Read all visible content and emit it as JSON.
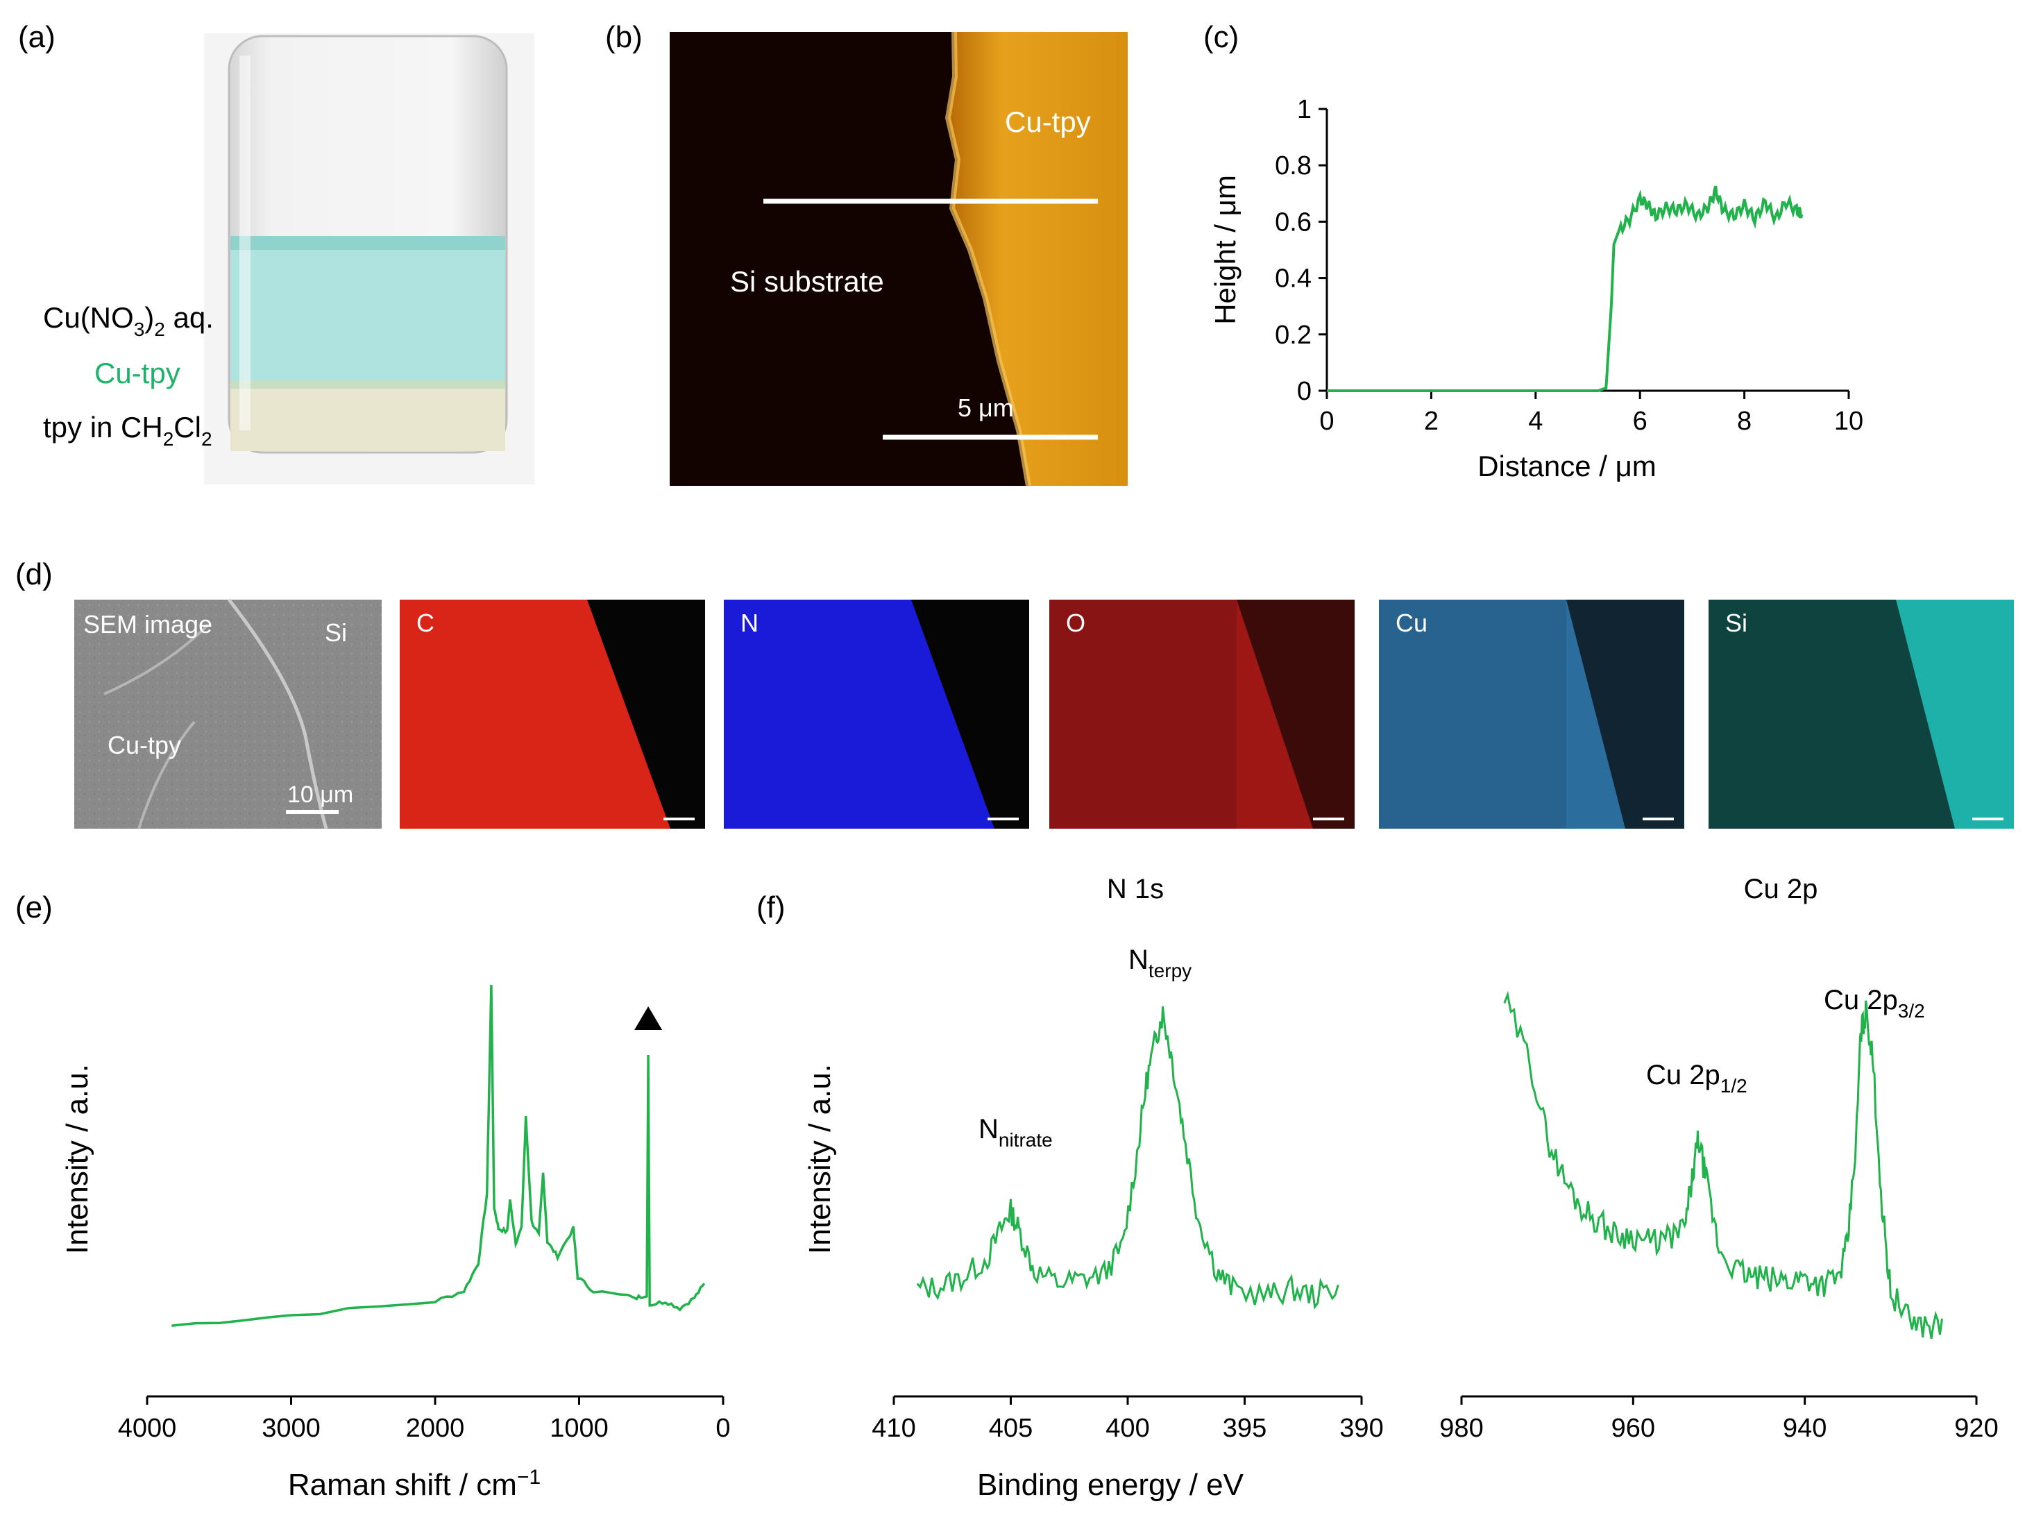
{
  "panel_labels": {
    "a": "(a)",
    "b": "(b)",
    "c": "(c)",
    "d": "(d)",
    "e": "(e)",
    "f": "(f)"
  },
  "colors": {
    "line": "#21b24b",
    "cutpy_text": "#1fb36a",
    "solution": "#aee3e0",
    "afm_dark": "#120300",
    "afm_film": "#d4900f"
  },
  "panel_a": {
    "label_solution": {
      "main": "Cu(NO",
      "sub": "3",
      "post": ")",
      "sub2": "2",
      "tail": " aq."
    },
    "label_cutpy": "Cu-tpy",
    "label_tpy": {
      "main": "tpy in CH",
      "sub": "2",
      "mid": "Cl",
      "sub2": "2"
    }
  },
  "panel_b": {
    "label_film": "Cu-tpy",
    "label_substrate": "Si substrate",
    "scale_text": "5 μm"
  },
  "panel_d": {
    "sem": {
      "title": "SEM image",
      "label_si": "Si",
      "label_film": "Cu-tpy",
      "scale_text": "10 μm"
    },
    "maps": [
      {
        "element": "C",
        "color": "#ff2a1c"
      },
      {
        "element": "N",
        "color": "#1e1eff"
      },
      {
        "element": "O",
        "color": "#e0201c"
      },
      {
        "element": "Cu",
        "color": "#3b96d8"
      },
      {
        "element": "Si",
        "color": "#20b7b0"
      }
    ]
  },
  "chart_data": [
    {
      "id": "c",
      "type": "line",
      "title": "",
      "xlabel": "Distance / μm",
      "ylabel": "Height / μm",
      "xlim": [
        0,
        10
      ],
      "ylim": [
        0,
        1
      ],
      "xticks": [
        "0",
        "2",
        "4",
        "6",
        "8",
        "10"
      ],
      "yticks": [
        "0",
        "0.2",
        "0.4",
        "0.6",
        "0.8",
        "1"
      ],
      "series": [
        {
          "name": "height profile",
          "x": [
            0,
            5.2,
            5.35,
            5.45,
            5.5,
            5.6,
            5.8,
            6.0,
            6.15,
            6.3,
            6.5,
            6.7,
            6.9,
            7.1,
            7.3,
            7.45,
            7.6,
            7.8,
            8.0,
            8.2,
            8.4,
            8.6,
            8.8,
            9.0,
            9.1
          ],
          "y": [
            0,
            0,
            0.01,
            0.3,
            0.52,
            0.57,
            0.61,
            0.68,
            0.66,
            0.62,
            0.65,
            0.64,
            0.66,
            0.62,
            0.65,
            0.71,
            0.64,
            0.62,
            0.66,
            0.61,
            0.67,
            0.61,
            0.67,
            0.64,
            0.63
          ]
        }
      ]
    },
    {
      "id": "e",
      "type": "line",
      "title": "",
      "xlabel": "Raman shift / cm",
      "xlabel_sup": "−1",
      "ylabel": "Intensity / a.u.",
      "xlim": [
        4000,
        0
      ],
      "xticks": [
        "4000",
        "3000",
        "2000",
        "1000",
        "0"
      ],
      "annotation": "▲ at 520 cm⁻¹",
      "series": [
        {
          "name": "Raman",
          "x": [
            3830,
            3000,
            2000,
            1800,
            1700,
            1640,
            1610,
            1590,
            1560,
            1500,
            1480,
            1440,
            1400,
            1370,
            1330,
            1280,
            1250,
            1220,
            1150,
            1040,
            1010,
            900,
            600,
            530,
            520,
            510,
            400,
            300,
            200,
            130
          ],
          "y": [
            0.02,
            0.05,
            0.09,
            0.12,
            0.2,
            0.4,
            1.0,
            0.36,
            0.3,
            0.29,
            0.38,
            0.26,
            0.3,
            0.62,
            0.32,
            0.28,
            0.46,
            0.26,
            0.22,
            0.3,
            0.16,
            0.12,
            0.1,
            0.11,
            0.8,
            0.08,
            0.09,
            0.07,
            0.1,
            0.14
          ]
        }
      ]
    },
    {
      "id": "f-N1s",
      "type": "line",
      "title": "N 1s",
      "xlabel": "Binding energy / eV",
      "ylabel": "Intensity / a.u.",
      "xlim": [
        410,
        390
      ],
      "xticks": [
        "410",
        "405",
        "400",
        "395",
        "390"
      ],
      "annotations": [
        {
          "text": "N",
          "sub": "nitrate",
          "x": 405
        },
        {
          "text": "N",
          "sub": "terpy",
          "x": 398.7
        }
      ],
      "series": [
        {
          "name": "N 1s",
          "x": [
            409,
            408,
            407,
            406,
            405.3,
            405,
            404.6,
            404,
            403,
            402,
            401,
            400.2,
            399.6,
            399.2,
            398.8,
            398.5,
            398.1,
            397.6,
            397,
            396.2,
            395.5,
            394,
            393,
            392,
            391
          ],
          "y": [
            0.12,
            0.13,
            0.16,
            0.22,
            0.33,
            0.37,
            0.3,
            0.18,
            0.14,
            0.15,
            0.17,
            0.26,
            0.55,
            0.78,
            0.92,
            1.0,
            0.85,
            0.62,
            0.35,
            0.18,
            0.12,
            0.1,
            0.12,
            0.1,
            0.13
          ]
        }
      ]
    },
    {
      "id": "f-Cu2p",
      "type": "line",
      "title": "Cu 2p",
      "xlabel": "Binding energy / eV",
      "ylabel": "",
      "xlim": [
        980,
        920
      ],
      "xticks": [
        "980",
        "960",
        "940",
        "920"
      ],
      "annotations": [
        {
          "text": "Cu 2p",
          "sub": "1/2",
          "x": 952.6
        },
        {
          "text": "Cu 2p",
          "sub": "3/2",
          "x": 932.8
        }
      ],
      "series": [
        {
          "name": "Cu 2p",
          "x": [
            975,
            972,
            970,
            968,
            966,
            964,
            962,
            960,
            958,
            956,
            954,
            953,
            952.4,
            951.5,
            950,
            948,
            946,
            944,
            942,
            940,
            938,
            936,
            935,
            934,
            933.5,
            932.8,
            932,
            931,
            930,
            928,
            926,
            924
          ],
          "y": [
            1.0,
            0.82,
            0.6,
            0.48,
            0.4,
            0.36,
            0.32,
            0.32,
            0.3,
            0.31,
            0.34,
            0.5,
            0.6,
            0.48,
            0.28,
            0.22,
            0.2,
            0.19,
            0.19,
            0.2,
            0.18,
            0.2,
            0.3,
            0.6,
            0.9,
            0.97,
            0.8,
            0.4,
            0.16,
            0.08,
            0.06,
            0.06
          ]
        }
      ]
    }
  ]
}
